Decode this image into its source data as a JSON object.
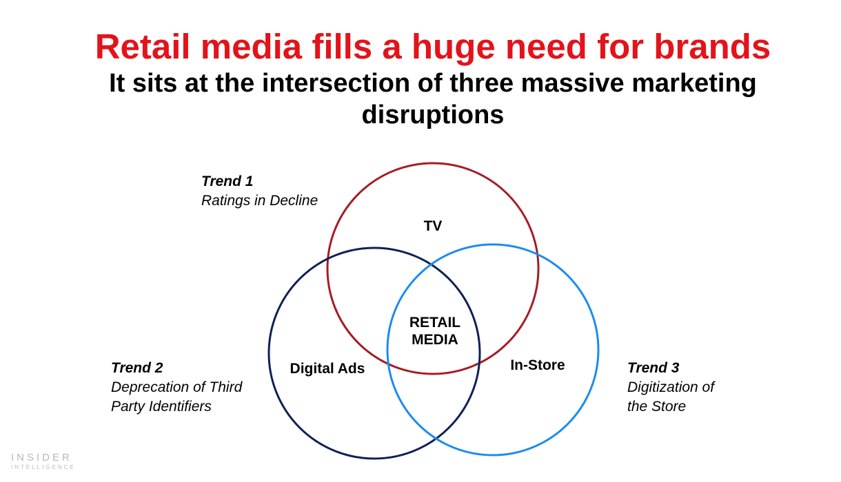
{
  "slide": {
    "title": "Retail media fills a huge need for brands",
    "subtitle": "It sits at the intersection of three massive marketing disruptions"
  },
  "diagram": {
    "circles": [
      {
        "label": "TV",
        "color": "#a51c24"
      },
      {
        "label": "Digital Ads",
        "color": "#0f2057"
      },
      {
        "label": "In-Store",
        "color": "#1a8cf0"
      }
    ],
    "center_label_line1": "RETAIL",
    "center_label_line2": "MEDIA",
    "trends": [
      {
        "title": "Trend 1",
        "line1": "Ratings in Decline",
        "line2": ""
      },
      {
        "title": "Trend 2",
        "line1": "Deprecation of Third",
        "line2": "Party Identifiers"
      },
      {
        "title": "Trend 3",
        "line1": "Digitization of",
        "line2": "the Store"
      }
    ]
  },
  "logo": {
    "line1": "INSIDER",
    "line2": "INTELLIGENCE"
  },
  "colors": {
    "title": "#e3131b"
  }
}
